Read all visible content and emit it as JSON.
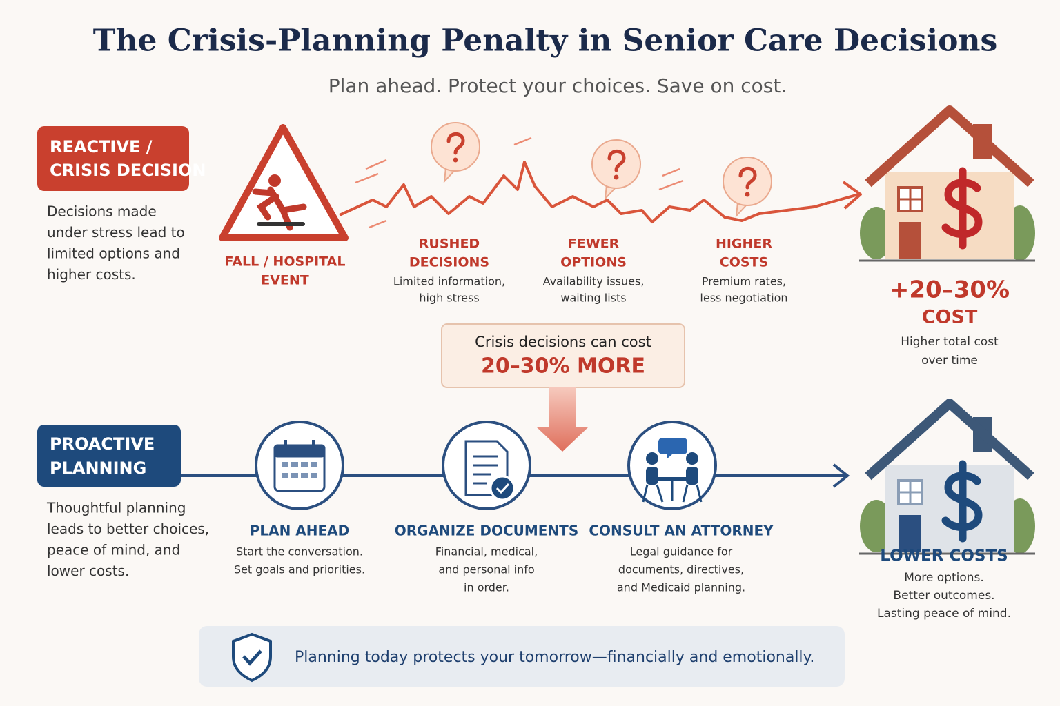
{
  "title": "The Crisis-Planning Penalty in Senior Care Decisions",
  "subtitle": "Plan ahead. Protect your choices. Save on cost.",
  "reactive": {
    "label": [
      "REACTIVE /",
      "CRISIS DECISION"
    ],
    "description": [
      "Decisions made",
      "under stress lead to",
      "limited options and",
      "higher costs."
    ],
    "steps": [
      {
        "title": [
          "FALL / HOSPITAL",
          "EVENT"
        ]
      },
      {
        "title": [
          "RUSHED",
          "DECISIONS"
        ],
        "description": [
          "Limited information,",
          "high stress"
        ]
      },
      {
        "title": [
          "FEWER",
          "OPTIONS"
        ],
        "description": [
          "Availability issues,",
          "waiting lists"
        ]
      },
      {
        "title": [
          "HIGHER",
          "COSTS"
        ],
        "description": [
          "Premium rates,",
          "less negotiation"
        ]
      }
    ],
    "outcome": {
      "value": "+20–30%",
      "label": "COST",
      "description": [
        "Higher total cost",
        "over time"
      ]
    }
  },
  "callout": {
    "text": "Crisis decisions can cost",
    "highlight": "20–30% MORE"
  },
  "proactive": {
    "label": [
      "PROACTIVE",
      "PLANNING"
    ],
    "description": [
      "Thoughtful planning",
      "leads to better choices,",
      "peace of mind, and",
      "lower costs."
    ],
    "steps": [
      {
        "title": [
          "PLAN AHEAD"
        ],
        "description": [
          "Start the conversation.",
          "Set goals and priorities."
        ]
      },
      {
        "title": [
          "ORGANIZE DOCUMENTS"
        ],
        "description": [
          "Financial, medical,",
          "and personal info",
          "in order."
        ]
      },
      {
        "title": [
          "CONSULT AN ATTORNEY"
        ],
        "description": [
          "Legal guidance for",
          "documents, directives,",
          "and Medicaid planning."
        ]
      }
    ],
    "outcome": {
      "label": "LOWER COSTS",
      "description": [
        "More options.",
        "Better outcomes.",
        "Lasting peace of mind."
      ]
    }
  },
  "footer": "Planning today protects your tomorrow—financially and emotionally."
}
